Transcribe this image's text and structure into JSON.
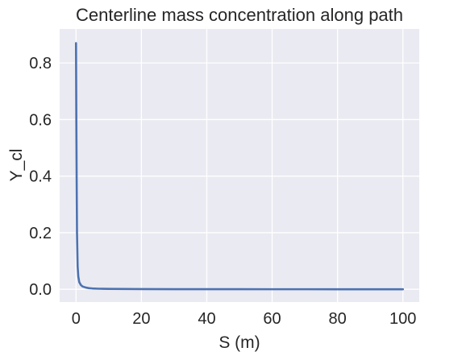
{
  "chart_data": {
    "type": "line",
    "title": "Centerline mass concentration along path",
    "xlabel": "S (m)",
    "ylabel": "Y_cl",
    "xlim": [
      -5,
      105
    ],
    "ylim": [
      -0.045,
      0.92
    ],
    "xticks": [
      0,
      20,
      40,
      60,
      80,
      100
    ],
    "yticks": [
      0.0,
      0.2,
      0.4,
      0.6,
      0.8
    ],
    "xtick_labels": [
      "0",
      "20",
      "40",
      "60",
      "80",
      "100"
    ],
    "ytick_labels": [
      "0.0",
      "0.2",
      "0.4",
      "0.6",
      "0.8"
    ],
    "grid": true,
    "background": "#eaeaf2",
    "series": [
      {
        "color": "#4c72b0",
        "x": [
          0,
          0.1,
          0.2,
          0.3,
          0.5,
          0.7,
          1,
          1.5,
          2,
          3,
          4,
          5,
          7,
          10,
          15,
          20,
          30,
          40,
          50,
          60,
          70,
          80,
          90,
          100
        ],
        "y": [
          0.87,
          0.6,
          0.38,
          0.2,
          0.08,
          0.045,
          0.025,
          0.015,
          0.01,
          0.006,
          0.004,
          0.003,
          0.002,
          0.0015,
          0.001,
          0.0008,
          0.0005,
          0.0004,
          0.0003,
          0.0002,
          0.0002,
          0.0001,
          0.0001,
          0.0001
        ]
      }
    ]
  }
}
